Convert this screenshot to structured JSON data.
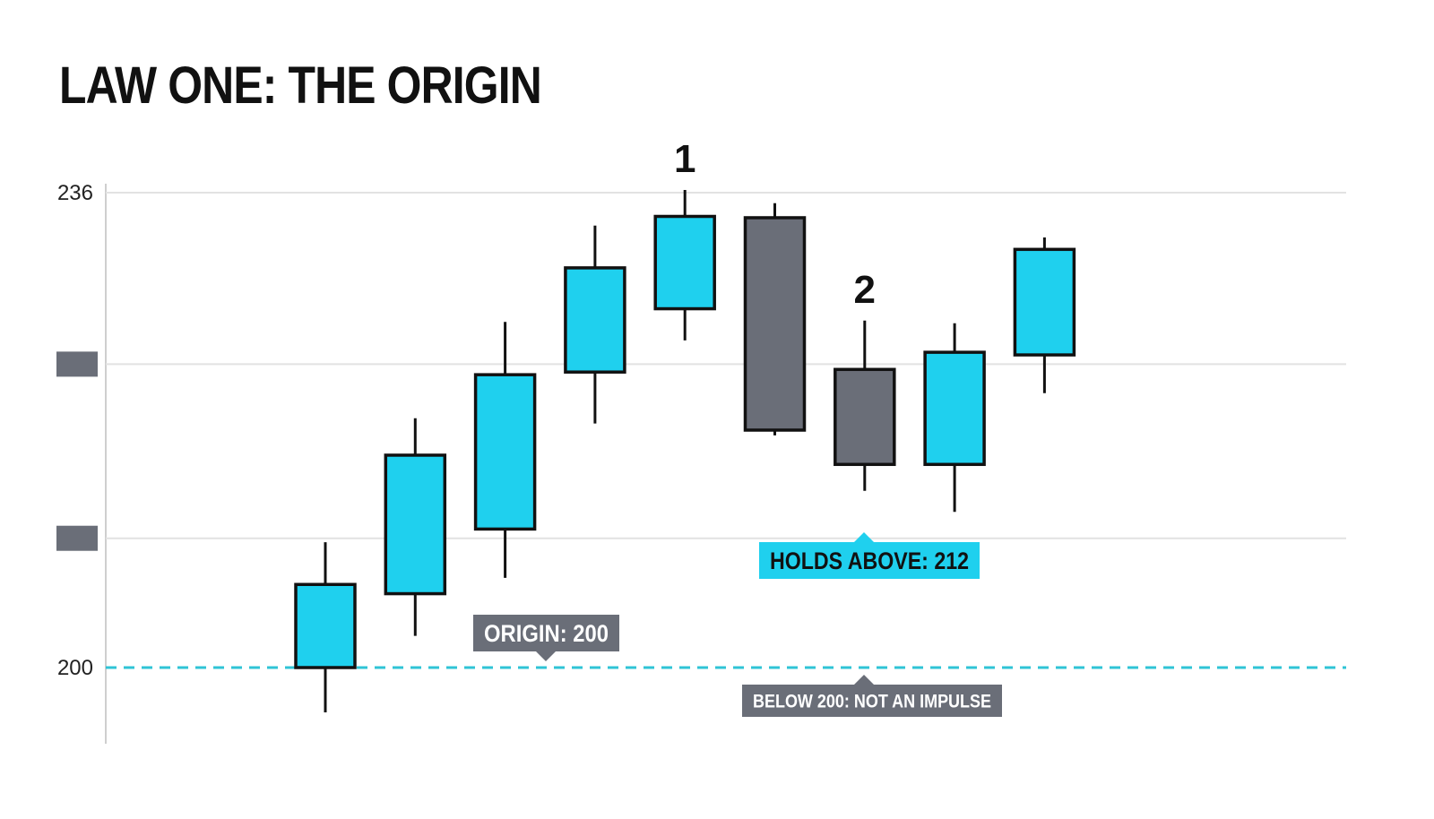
{
  "title": "LAW ONE: THE ORIGIN",
  "colors": {
    "bullish": "#1fd0ee",
    "bearish": "#6a6e78",
    "outline": "#111111",
    "grid": "#e2e2e2",
    "origin_line": "#2fc4d6",
    "callout_gray": "#6a6e78",
    "callout_cyan": "#1fd0ee"
  },
  "chart_data": {
    "type": "candlestick",
    "ylim": [
      197,
      236
    ],
    "yticks": [
      {
        "value": 236,
        "label": "236"
      },
      {
        "value": 223,
        "label": ""
      },
      {
        "value": 209.8,
        "label": ""
      },
      {
        "value": 200,
        "label": "200"
      }
    ],
    "candles": [
      {
        "open": 200.0,
        "high": 209.5,
        "low": 196.6,
        "close": 206.3
      },
      {
        "open": 205.6,
        "high": 218.9,
        "low": 202.4,
        "close": 216.1
      },
      {
        "open": 210.5,
        "high": 226.2,
        "low": 206.8,
        "close": 222.2
      },
      {
        "open": 222.4,
        "high": 233.5,
        "low": 218.5,
        "close": 230.3
      },
      {
        "open": 227.2,
        "high": 236.2,
        "low": 224.8,
        "close": 234.2
      },
      {
        "open": 234.1,
        "high": 235.2,
        "low": 217.6,
        "close": 218.0
      },
      {
        "open": 222.6,
        "high": 226.3,
        "low": 213.4,
        "close": 215.4
      },
      {
        "open": 215.4,
        "high": 226.1,
        "low": 211.8,
        "close": 223.9
      },
      {
        "open": 223.7,
        "high": 232.6,
        "low": 220.8,
        "close": 231.7
      }
    ],
    "wave_labels": [
      {
        "candle": 4,
        "text": "1"
      },
      {
        "candle": 6,
        "text": "2"
      }
    ],
    "origin_level": 200,
    "annotations": [
      {
        "name": "origin",
        "text": "ORIGIN: 200"
      },
      {
        "name": "holds",
        "text": "HOLDS ABOVE: 212"
      },
      {
        "name": "below",
        "text": "BELOW 200: NOT AN IMPULSE"
      }
    ]
  }
}
